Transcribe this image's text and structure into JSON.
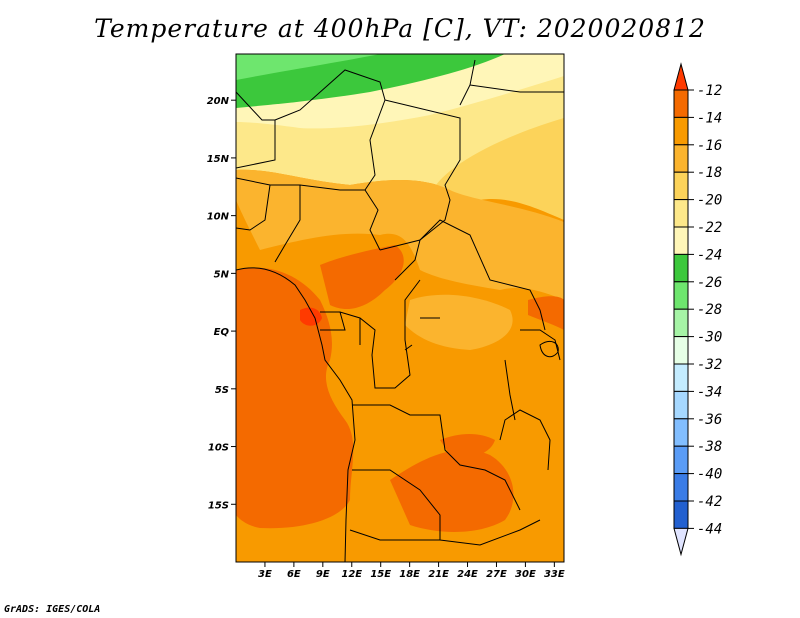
{
  "title": "Temperature at 400hPa [C], VT: 2020020812",
  "credit": "GrADS: IGES/COLA",
  "map": {
    "lon_range": [
      0,
      34
    ],
    "lat_range": [
      -20,
      24
    ],
    "lon_ticks": [
      "3E",
      "6E",
      "9E",
      "12E",
      "15E",
      "18E",
      "21E",
      "24E",
      "27E",
      "30E",
      "33E"
    ],
    "lon_tick_values": [
      3,
      6,
      9,
      12,
      15,
      18,
      21,
      24,
      27,
      30,
      33
    ],
    "lat_ticks": [
      "20N",
      "15N",
      "10N",
      "5N",
      "EQ",
      "5S",
      "10S",
      "15S"
    ],
    "lat_tick_values": [
      20,
      15,
      10,
      5,
      0,
      -5,
      -10,
      -15
    ]
  },
  "colorbar": {
    "labels": [
      "-12",
      "-14",
      "-16",
      "-18",
      "-20",
      "-22",
      "-24",
      "-26",
      "-28",
      "-30",
      "-32",
      "-34",
      "-36",
      "-38",
      "-40",
      "-42",
      "-44"
    ],
    "colors": [
      "#ff3a00",
      "#f46a00",
      "#f89a00",
      "#fbb42e",
      "#fcd35a",
      "#fde88a",
      "#fff6b8",
      "#3cc83c",
      "#6ee66e",
      "#a6f4a6",
      "#e6ffe6",
      "#c4ecff",
      "#a6d8ff",
      "#82beff",
      "#5a9cf6",
      "#3a7ce6",
      "#2260d0",
      "#0c3ab8",
      "#06107a",
      "#e0e4ff"
    ],
    "top_arrow_color": "#ff3a00",
    "bottom_arrow_color": "#e0e4ff"
  }
}
